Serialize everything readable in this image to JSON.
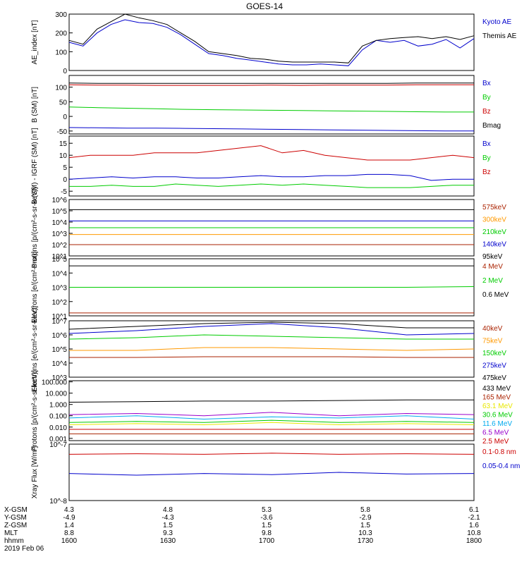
{
  "title": "GOES-14",
  "colors": {
    "black": "#000000",
    "blue": "#0000cc",
    "red": "#cc0000",
    "green": "#00cc00",
    "orange": "#ff9900",
    "cyan": "#00aaee",
    "purple": "#9900cc",
    "darkred": "#aa2200",
    "yellow": "#e8e800"
  },
  "footer": {
    "rows": [
      {
        "label": "X-GSM",
        "values": [
          "4.3",
          "4.8",
          "5.3",
          "5.8",
          "6.1"
        ]
      },
      {
        "label": "Y-GSM",
        "values": [
          "-4.9",
          "-4.3",
          "-3.6",
          "-2.9",
          "-2.1"
        ]
      },
      {
        "label": "Z-GSM",
        "values": [
          "1.4",
          "1.5",
          "1.5",
          "1.5",
          "1.6"
        ]
      },
      {
        "label": "MLT",
        "values": [
          "8.8",
          "9.3",
          "9.8",
          "10.3",
          "10.8"
        ]
      },
      {
        "label": "hhmm",
        "values": [
          "1600",
          "1630",
          "1700",
          "1730",
          "1800"
        ]
      }
    ],
    "date": "2019 Feb 06"
  },
  "chart_data": [
    {
      "type": "line",
      "ylabel": "AE_index [nT]",
      "ylim": [
        0,
        300
      ],
      "ticks": [
        "0",
        "100",
        "200",
        "300"
      ],
      "series": [
        {
          "name": "Kyoto AE",
          "color": "blue",
          "values": [
            150,
            130,
            200,
            245,
            270,
            255,
            250,
            230,
            190,
            140,
            90,
            80,
            65,
            55,
            45,
            35,
            30,
            30,
            35,
            30,
            25,
            110,
            160,
            150,
            160,
            130,
            140,
            165,
            120,
            170
          ]
        },
        {
          "name": "Themis AE",
          "color": "black",
          "values": [
            160,
            140,
            220,
            260,
            300,
            280,
            265,
            245,
            200,
            155,
            100,
            90,
            80,
            65,
            60,
            50,
            45,
            45,
            45,
            45,
            40,
            130,
            160,
            170,
            175,
            180,
            170,
            180,
            165,
            185
          ]
        }
      ]
    },
    {
      "type": "line",
      "ylabel": "B (SM) [nT]",
      "ylim": [
        -60,
        140
      ],
      "ticks": [
        "-50",
        "0",
        "50",
        "100"
      ],
      "series": [
        {
          "name": "Bx",
          "color": "blue",
          "values": [
            -38,
            -39,
            -40,
            -40,
            -41,
            -42,
            -43,
            -44,
            -45,
            -46,
            -47,
            -48,
            -49,
            -50,
            -50
          ]
        },
        {
          "name": "By",
          "color": "green",
          "values": [
            32,
            30,
            28,
            26,
            24,
            23,
            22,
            21,
            20,
            19,
            18,
            17,
            16,
            15,
            15
          ]
        },
        {
          "name": "Bz",
          "color": "red",
          "values": [
            108,
            107,
            107,
            106,
            106,
            106,
            106,
            107,
            106,
            107,
            107,
            107,
            108,
            108,
            108
          ]
        },
        {
          "name": "Bmag",
          "color": "black",
          "values": [
            114,
            113,
            113,
            113,
            113,
            113,
            113,
            113,
            113,
            113,
            113,
            113,
            114,
            114,
            114
          ]
        }
      ]
    },
    {
      "type": "line",
      "ylabel": "B (SM) - IGRF (SM) [nT]",
      "ylim": [
        -7,
        18
      ],
      "ticks": [
        "-5",
        "0",
        "5",
        "10",
        "15"
      ],
      "series": [
        {
          "name": "Bx",
          "color": "blue",
          "values": [
            0,
            0.5,
            1,
            0.5,
            1,
            1,
            0.5,
            0.5,
            1,
            1.5,
            1,
            1,
            1.5,
            1.5,
            2,
            2,
            1.5,
            -0.5,
            0,
            0
          ]
        },
        {
          "name": "By",
          "color": "green",
          "values": [
            -3,
            -3,
            -2.5,
            -3,
            -3,
            -2,
            -2.5,
            -3,
            -2.5,
            -2,
            -2.5,
            -2,
            -2.5,
            -3,
            -3.5,
            -3.5,
            -3.5,
            -3,
            -2.5,
            -2.5
          ]
        },
        {
          "name": "Bz",
          "color": "red",
          "values": [
            9,
            10,
            10,
            10,
            11,
            11,
            11,
            12,
            13,
            14,
            11,
            12,
            10,
            9,
            8,
            8,
            8,
            9,
            10,
            9
          ]
        }
      ]
    },
    {
      "type": "line",
      "log": true,
      "ylabel": "Protons [p/(cm²-s-sr-keV)]",
      "ylim": [
        1,
        6
      ],
      "ticks": [
        "10^1",
        "10^2",
        "10^3",
        "10^4",
        "10^5",
        "10^6"
      ],
      "series": [
        {
          "name": "575keV",
          "color": "darkred",
          "values": [
            2.0,
            2.0,
            2.0,
            2.0,
            2.0,
            2.0,
            2.0
          ]
        },
        {
          "name": "300keV",
          "color": "orange",
          "values": [
            2.9,
            2.9,
            2.9,
            2.9,
            2.9,
            2.9,
            2.9
          ]
        },
        {
          "name": "210keV",
          "color": "green",
          "values": [
            3.5,
            3.5,
            3.5,
            3.5,
            3.5,
            3.5,
            3.5
          ]
        },
        {
          "name": "140keV",
          "color": "blue",
          "values": [
            4.1,
            4.1,
            4.1,
            4.1,
            4.1,
            4.1,
            4.1
          ]
        },
        {
          "name": "95keV",
          "color": "black",
          "values": [
            5.1,
            5.1,
            5.1,
            5.1,
            5.1,
            5.1,
            5.1
          ]
        }
      ]
    },
    {
      "type": "line",
      "log": true,
      "ylabel": "Electrons [e/(cm²-s-sr)]",
      "ylim": [
        1,
        5
      ],
      "ticks": [
        "10^1",
        "10^2",
        "10^3",
        "10^4",
        "10^5"
      ],
      "series": [
        {
          "name": "4 MeV",
          "color": "darkred",
          "values": [
            1.2,
            1.2,
            1.2,
            1.2,
            1.2,
            1.2,
            1.2
          ]
        },
        {
          "name": "2 MeV",
          "color": "green",
          "values": [
            3.0,
            3.0,
            3.0,
            3.0,
            3.0,
            3.0,
            3.05
          ]
        },
        {
          "name": "0.6 MeV",
          "color": "black",
          "values": [
            4.5,
            4.5,
            4.5,
            4.5,
            4.5,
            4.5,
            4.5
          ]
        }
      ]
    },
    {
      "type": "line",
      "log": true,
      "ylabel": "Electrons [e/(cm²-s-sr-keV)]",
      "ylim": [
        3,
        7
      ],
      "ticks": [
        "10^3",
        "10^4",
        "10^5",
        "10^6",
        "10^7"
      ],
      "series": [
        {
          "name": "40keV",
          "color": "darkred",
          "values": [
            4.4,
            4.4,
            4.45,
            4.45,
            4.45,
            4.4,
            4.4
          ]
        },
        {
          "name": "75keV",
          "color": "orange",
          "values": [
            4.9,
            4.9,
            5.1,
            5.1,
            5.0,
            4.9,
            5.0
          ]
        },
        {
          "name": "150keV",
          "color": "green",
          "values": [
            5.7,
            5.8,
            6.0,
            5.9,
            5.8,
            5.7,
            5.7
          ]
        },
        {
          "name": "275keV",
          "color": "blue",
          "values": [
            6.1,
            6.3,
            6.6,
            6.8,
            6.5,
            6.0,
            6.1
          ]
        },
        {
          "name": "475keV",
          "color": "black",
          "values": [
            6.4,
            6.6,
            6.8,
            6.9,
            6.8,
            6.5,
            6.5
          ]
        }
      ]
    },
    {
      "type": "line",
      "log": true,
      "ylabel": "Protons [p/(cm²-s-sr-keV)]",
      "ylim": [
        -3.2,
        2.1
      ],
      "ticks": [
        "0.001",
        "0.010",
        "0.100",
        "1.000",
        "10.000",
        "100.000"
      ],
      "series": [
        {
          "name": "433 MeV",
          "color": "black",
          "values": [
            0.2,
            0.25,
            0.3,
            0.3,
            0.35,
            0.4,
            0.4
          ]
        },
        {
          "name": "165 MeV",
          "color": "darkred",
          "values": [
            -2.6,
            -2.6,
            -2.6,
            -2.6,
            -2.6,
            -2.6,
            -2.6
          ]
        },
        {
          "name": "63.1 MeV",
          "color": "yellow",
          "values": [
            -1.8,
            -1.7,
            -1.8,
            -1.6,
            -1.8,
            -1.7,
            -1.8
          ]
        },
        {
          "name": "30.6 MeV",
          "color": "green",
          "values": [
            -1.6,
            -1.5,
            -1.6,
            -1.4,
            -1.6,
            -1.5,
            -1.6
          ]
        },
        {
          "name": "11.6 MeV",
          "color": "cyan",
          "values": [
            -1.2,
            -1.0,
            -1.3,
            -1.1,
            -1.2,
            -1.0,
            -1.3
          ]
        },
        {
          "name": "6.5 MeV",
          "color": "purple",
          "values": [
            -0.9,
            -0.8,
            -1.0,
            -0.7,
            -1.0,
            -0.8,
            -0.9
          ]
        },
        {
          "name": "2.5 MeV",
          "color": "red",
          "values": [
            -2.2,
            -2.2,
            -2.2,
            -2.2,
            -2.2,
            -2.2,
            -2.2
          ]
        }
      ]
    },
    {
      "type": "line",
      "log": true,
      "ylabel": "Xray Flux [W/m²]",
      "ylim": [
        -8,
        -7
      ],
      "ticks": [
        "10^-8",
        "10^-7"
      ],
      "series": [
        {
          "name": "0.1-0.8 nm",
          "color": "red",
          "values": [
            -7.18,
            -7.17,
            -7.18,
            -7.16,
            -7.18,
            -7.17,
            -7.18
          ]
        },
        {
          "name": "0.05-0.4 nm",
          "color": "blue",
          "values": [
            -7.52,
            -7.55,
            -7.52,
            -7.54,
            -7.5,
            -7.53,
            -7.52
          ]
        }
      ]
    }
  ]
}
